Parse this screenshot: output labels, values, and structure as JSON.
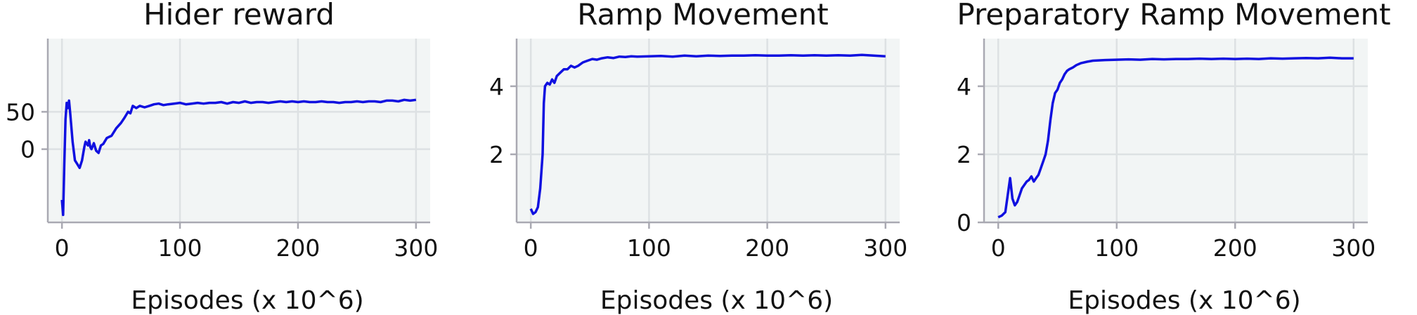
{
  "chart_data": [
    {
      "type": "line",
      "title": "Hider reward",
      "xlabel": "Episodes (x 10^6)",
      "ylabel": "",
      "xlim": [
        -12,
        312
      ],
      "ylim": [
        -98,
        148
      ],
      "xticks": [
        0,
        100,
        200,
        300
      ],
      "yticks": [
        0,
        50
      ],
      "grid": true,
      "series": [
        {
          "color": "#1010e0",
          "points": [
            [
              0,
              -68
            ],
            [
              1,
              -88
            ],
            [
              2,
              -20
            ],
            [
              3,
              40
            ],
            [
              4,
              62
            ],
            [
              5,
              55
            ],
            [
              6,
              65
            ],
            [
              7,
              48
            ],
            [
              9,
              10
            ],
            [
              11,
              -15
            ],
            [
              13,
              -20
            ],
            [
              15,
              -25
            ],
            [
              17,
              -15
            ],
            [
              19,
              3
            ],
            [
              20,
              10
            ],
            [
              22,
              5
            ],
            [
              23,
              12
            ],
            [
              24,
              3
            ],
            [
              25,
              0
            ],
            [
              27,
              8
            ],
            [
              29,
              -2
            ],
            [
              31,
              -5
            ],
            [
              33,
              5
            ],
            [
              35,
              7
            ],
            [
              38,
              15
            ],
            [
              42,
              18
            ],
            [
              46,
              28
            ],
            [
              50,
              35
            ],
            [
              53,
              42
            ],
            [
              56,
              50
            ],
            [
              58,
              48
            ],
            [
              60,
              58
            ],
            [
              63,
              55
            ],
            [
              66,
              58
            ],
            [
              70,
              56
            ],
            [
              74,
              58
            ],
            [
              78,
              60
            ],
            [
              82,
              61
            ],
            [
              86,
              59
            ],
            [
              90,
              60
            ],
            [
              95,
              61
            ],
            [
              100,
              62
            ],
            [
              105,
              60
            ],
            [
              110,
              61
            ],
            [
              115,
              62
            ],
            [
              120,
              61
            ],
            [
              125,
              62
            ],
            [
              130,
              62
            ],
            [
              135,
              63
            ],
            [
              140,
              61
            ],
            [
              145,
              63
            ],
            [
              150,
              62
            ],
            [
              155,
              64
            ],
            [
              160,
              62
            ],
            [
              165,
              63
            ],
            [
              170,
              63
            ],
            [
              175,
              62
            ],
            [
              180,
              63
            ],
            [
              185,
              64
            ],
            [
              190,
              63
            ],
            [
              195,
              64
            ],
            [
              200,
              63
            ],
            [
              205,
              64
            ],
            [
              210,
              63
            ],
            [
              215,
              63
            ],
            [
              220,
              64
            ],
            [
              225,
              63
            ],
            [
              230,
              63
            ],
            [
              235,
              62
            ],
            [
              240,
              63
            ],
            [
              245,
              63
            ],
            [
              250,
              64
            ],
            [
              255,
              63
            ],
            [
              260,
              64
            ],
            [
              265,
              64
            ],
            [
              270,
              63
            ],
            [
              275,
              65
            ],
            [
              280,
              65
            ],
            [
              285,
              64
            ],
            [
              290,
              66
            ],
            [
              295,
              65
            ],
            [
              300,
              66
            ]
          ]
        }
      ]
    },
    {
      "type": "line",
      "title": "Ramp Movement",
      "xlabel": "Episodes (x 10^6)",
      "ylabel": "",
      "xlim": [
        -12,
        312
      ],
      "ylim": [
        0,
        5.4
      ],
      "xticks": [
        0,
        100,
        200,
        300
      ],
      "yticks": [
        2,
        4
      ],
      "grid": true,
      "series": [
        {
          "color": "#1010e0",
          "points": [
            [
              0,
              0.4
            ],
            [
              2,
              0.25
            ],
            [
              4,
              0.3
            ],
            [
              6,
              0.45
            ],
            [
              8,
              1.0
            ],
            [
              10,
              2.0
            ],
            [
              11,
              3.5
            ],
            [
              12,
              4.0
            ],
            [
              14,
              4.1
            ],
            [
              16,
              4.05
            ],
            [
              18,
              4.2
            ],
            [
              20,
              4.1
            ],
            [
              22,
              4.3
            ],
            [
              25,
              4.4
            ],
            [
              28,
              4.5
            ],
            [
              31,
              4.5
            ],
            [
              34,
              4.6
            ],
            [
              37,
              4.55
            ],
            [
              40,
              4.6
            ],
            [
              44,
              4.7
            ],
            [
              48,
              4.75
            ],
            [
              52,
              4.8
            ],
            [
              56,
              4.78
            ],
            [
              60,
              4.82
            ],
            [
              65,
              4.85
            ],
            [
              70,
              4.83
            ],
            [
              75,
              4.87
            ],
            [
              80,
              4.86
            ],
            [
              85,
              4.88
            ],
            [
              90,
              4.87
            ],
            [
              100,
              4.88
            ],
            [
              110,
              4.89
            ],
            [
              120,
              4.87
            ],
            [
              130,
              4.9
            ],
            [
              140,
              4.88
            ],
            [
              150,
              4.9
            ],
            [
              160,
              4.89
            ],
            [
              170,
              4.9
            ],
            [
              180,
              4.9
            ],
            [
              190,
              4.91
            ],
            [
              200,
              4.9
            ],
            [
              210,
              4.9
            ],
            [
              220,
              4.91
            ],
            [
              230,
              4.9
            ],
            [
              240,
              4.91
            ],
            [
              250,
              4.9
            ],
            [
              260,
              4.91
            ],
            [
              270,
              4.9
            ],
            [
              280,
              4.92
            ],
            [
              290,
              4.9
            ],
            [
              300,
              4.88
            ]
          ]
        }
      ]
    },
    {
      "type": "line",
      "title": "Preparatory Ramp Movement",
      "xlabel": "Episodes (x 10^6)",
      "ylabel": "",
      "xlim": [
        -12,
        312
      ],
      "ylim": [
        0,
        5.4
      ],
      "xticks": [
        0,
        100,
        200,
        300
      ],
      "yticks": [
        0,
        2,
        4
      ],
      "grid": true,
      "series": [
        {
          "color": "#1010e0",
          "points": [
            [
              0,
              0.15
            ],
            [
              3,
              0.2
            ],
            [
              6,
              0.3
            ],
            [
              8,
              0.8
            ],
            [
              10,
              1.3
            ],
            [
              12,
              0.7
            ],
            [
              14,
              0.5
            ],
            [
              16,
              0.6
            ],
            [
              18,
              0.8
            ],
            [
              20,
              1.0
            ],
            [
              22,
              1.1
            ],
            [
              24,
              1.2
            ],
            [
              26,
              1.25
            ],
            [
              28,
              1.35
            ],
            [
              30,
              1.2
            ],
            [
              32,
              1.3
            ],
            [
              34,
              1.4
            ],
            [
              36,
              1.6
            ],
            [
              38,
              1.8
            ],
            [
              40,
              2.0
            ],
            [
              42,
              2.4
            ],
            [
              44,
              3.0
            ],
            [
              46,
              3.5
            ],
            [
              48,
              3.8
            ],
            [
              50,
              3.9
            ],
            [
              52,
              4.1
            ],
            [
              54,
              4.2
            ],
            [
              56,
              4.35
            ],
            [
              58,
              4.45
            ],
            [
              60,
              4.5
            ],
            [
              63,
              4.55
            ],
            [
              66,
              4.62
            ],
            [
              70,
              4.68
            ],
            [
              75,
              4.72
            ],
            [
              80,
              4.75
            ],
            [
              90,
              4.77
            ],
            [
              100,
              4.78
            ],
            [
              110,
              4.79
            ],
            [
              120,
              4.78
            ],
            [
              130,
              4.8
            ],
            [
              140,
              4.79
            ],
            [
              150,
              4.8
            ],
            [
              160,
              4.8
            ],
            [
              170,
              4.81
            ],
            [
              180,
              4.8
            ],
            [
              190,
              4.81
            ],
            [
              200,
              4.8
            ],
            [
              210,
              4.81
            ],
            [
              220,
              4.8
            ],
            [
              230,
              4.82
            ],
            [
              240,
              4.81
            ],
            [
              250,
              4.82
            ],
            [
              260,
              4.83
            ],
            [
              270,
              4.82
            ],
            [
              280,
              4.84
            ],
            [
              290,
              4.82
            ],
            [
              300,
              4.82
            ]
          ]
        }
      ]
    }
  ],
  "style": {
    "plot_bg": "#f2f5f5",
    "grid_color": "#dde1e3",
    "spine_color": "#a9a9b2",
    "line_color": "#1010e0"
  }
}
